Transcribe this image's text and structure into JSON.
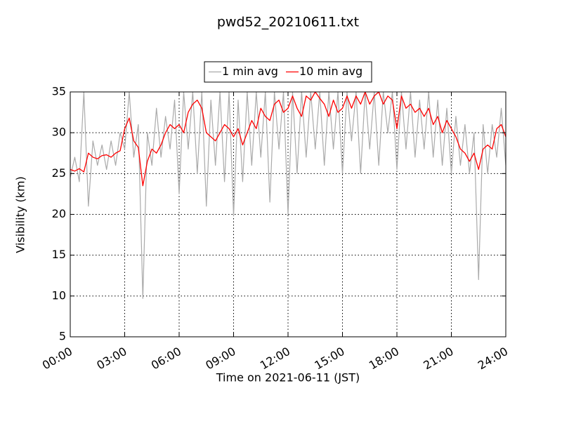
{
  "chart_data": {
    "type": "line",
    "title": "pwd52_20210611.txt",
    "xlabel": "Time on 2021-06-11 (JST)",
    "ylabel": "Visibility (km)",
    "legend": "upper center",
    "grid": true,
    "xlim": [
      0,
      24
    ],
    "ylim": [
      5,
      35
    ],
    "xticks": [
      {
        "value": 0,
        "label": "00:00"
      },
      {
        "value": 3,
        "label": "03:00"
      },
      {
        "value": 6,
        "label": "06:00"
      },
      {
        "value": 9,
        "label": "09:00"
      },
      {
        "value": 12,
        "label": "12:00"
      },
      {
        "value": 15,
        "label": "15:00"
      },
      {
        "value": 18,
        "label": "18:00"
      },
      {
        "value": 21,
        "label": "21:00"
      },
      {
        "value": 24,
        "label": "24:00"
      }
    ],
    "yticks": [
      5,
      10,
      15,
      20,
      25,
      30,
      35
    ],
    "x": [
      0,
      0.25,
      0.5,
      0.75,
      1,
      1.25,
      1.5,
      1.75,
      2,
      2.25,
      2.5,
      2.75,
      3,
      3.25,
      3.5,
      3.75,
      4,
      4.25,
      4.5,
      4.75,
      5,
      5.25,
      5.5,
      5.75,
      6,
      6.25,
      6.5,
      6.75,
      7,
      7.25,
      7.5,
      7.75,
      8,
      8.25,
      8.5,
      8.75,
      9,
      9.25,
      9.5,
      9.75,
      10,
      10.25,
      10.5,
      10.75,
      11,
      11.25,
      11.5,
      11.75,
      12,
      12.25,
      12.5,
      12.75,
      13,
      13.25,
      13.5,
      13.75,
      14,
      14.25,
      14.5,
      14.75,
      15,
      15.25,
      15.5,
      15.75,
      16,
      16.25,
      16.5,
      16.75,
      17,
      17.25,
      17.5,
      17.75,
      18,
      18.25,
      18.5,
      18.75,
      19,
      19.25,
      19.5,
      19.75,
      20,
      20.25,
      20.5,
      20.75,
      21,
      21.25,
      21.5,
      21.75,
      22,
      22.25,
      22.5,
      22.75,
      23,
      23.25,
      23.5,
      23.75,
      24
    ],
    "series": [
      {
        "name": "1 min avg",
        "color": "#aaaaaa",
        "values": [
          24.5,
          27,
          24,
          35,
          21,
          29,
          26,
          28.5,
          25.5,
          29,
          26,
          30,
          28,
          35,
          27,
          31,
          9.7,
          30,
          26,
          33,
          27,
          32,
          28,
          34,
          22.5,
          35,
          28,
          35,
          25,
          35,
          21,
          34,
          26,
          35,
          24,
          35,
          19.8,
          34,
          24,
          35,
          26,
          35,
          27,
          35,
          21.5,
          35,
          28,
          35,
          20,
          35,
          25,
          35,
          27,
          35,
          28,
          35,
          26,
          35,
          28,
          35,
          25,
          35,
          29,
          35,
          25,
          35,
          28,
          35,
          26,
          35,
          30,
          35,
          25.5,
          35,
          28,
          35,
          27,
          34,
          28,
          35,
          27,
          34,
          26,
          33,
          25,
          32,
          26,
          31,
          25,
          30,
          12,
          31,
          25,
          31,
          27,
          33,
          26
        ]
      },
      {
        "name": "10 min avg",
        "color": "#ff0000",
        "values": [
          25.5,
          25.3,
          25.6,
          25.2,
          27.5,
          27,
          26.8,
          27.2,
          27.3,
          27,
          27.5,
          27.8,
          30.5,
          31.8,
          29,
          28.2,
          23.5,
          26.5,
          28,
          27.5,
          28.5,
          30,
          31,
          30.5,
          31,
          30,
          32.5,
          33.5,
          34,
          33,
          30,
          29.5,
          29,
          30,
          31,
          30.5,
          29.5,
          30.5,
          28.5,
          30,
          31.5,
          30.5,
          33,
          32,
          31.5,
          33.5,
          34,
          32.5,
          33,
          34.5,
          33,
          32,
          34.5,
          34,
          35,
          34.2,
          33.5,
          32,
          34,
          32.5,
          33,
          34.5,
          33,
          34.5,
          33.5,
          35,
          33.5,
          34.5,
          35,
          33.5,
          34.5,
          34,
          30.5,
          34.5,
          33,
          33.5,
          32.5,
          33,
          32,
          33,
          31,
          32,
          30,
          31.5,
          30.5,
          29.5,
          28,
          27.5,
          26.5,
          27.5,
          25.5,
          28,
          28.5,
          28,
          30.5,
          31,
          29.5
        ]
      }
    ]
  }
}
